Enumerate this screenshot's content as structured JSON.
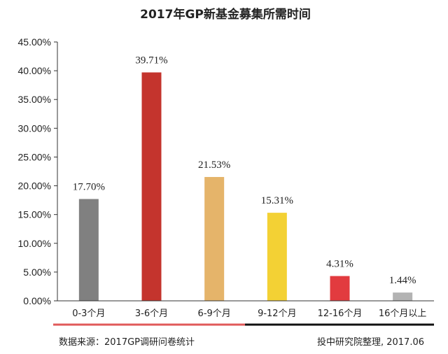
{
  "chart_data": {
    "type": "bar",
    "title": "2017年GP新基金募集所需时间",
    "categories": [
      "0-3个月",
      "3-6个月",
      "6-9个月",
      "9-12个月",
      "12-16个月",
      "16个月以上"
    ],
    "values": [
      17.7,
      39.71,
      21.53,
      15.31,
      4.31,
      1.44
    ],
    "data_labels": [
      "17.70%",
      "39.71%",
      "21.53%",
      "15.31%",
      "4.31%",
      "1.44%"
    ],
    "bar_colors": [
      "#808080",
      "#c4342d",
      "#e5b46a",
      "#f3d134",
      "#e23b3f",
      "#b3b3b3"
    ],
    "ylim": [
      0,
      45
    ],
    "yticks": [
      0,
      5,
      10,
      15,
      20,
      25,
      30,
      35,
      40,
      45
    ],
    "ytick_labels": [
      "0.00%",
      "5.00%",
      "10.00%",
      "15.00%",
      "20.00%",
      "25.00%",
      "30.00%",
      "35.00%",
      "40.00%",
      "45.00%"
    ],
    "xlabel": "",
    "ylabel": "",
    "grid": false,
    "legend": "none"
  },
  "footer": {
    "source": "数据来源：2017GP调研问卷统计",
    "credit": "投中研究院整理, 2017.06",
    "accent_color": "#e05a5a",
    "line_color": "#111111"
  }
}
